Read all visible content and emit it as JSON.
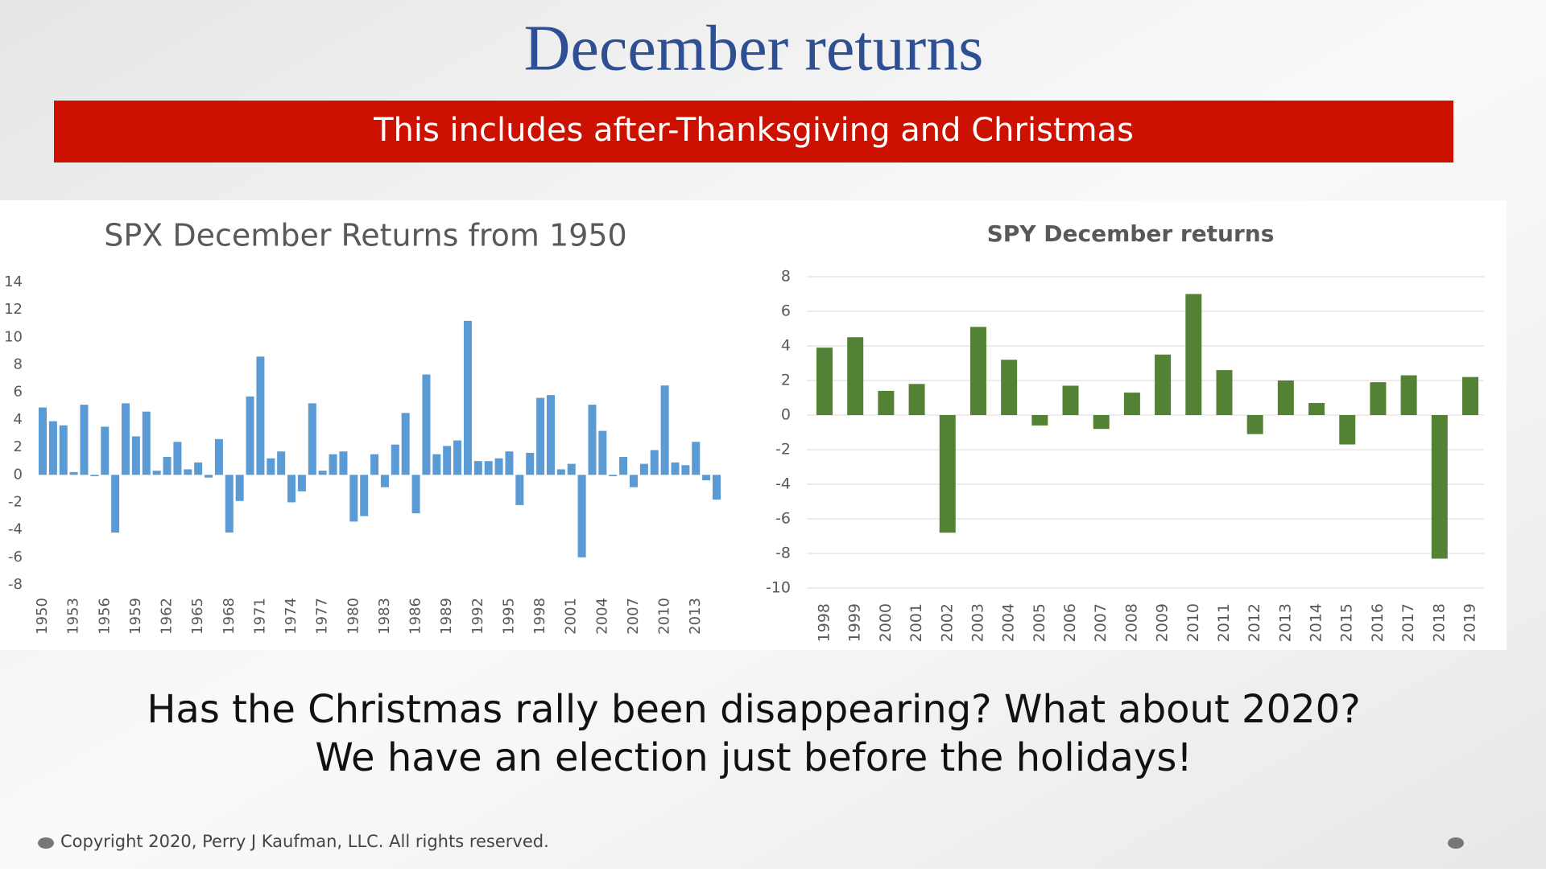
{
  "title": "December returns",
  "banner": "This includes after-Thanksgiving and Christmas",
  "chart_data": [
    {
      "type": "bar",
      "title": "SPX December Returns from 1950",
      "color": "#5b9bd5",
      "grid": false,
      "categories": [
        "1950",
        null,
        null,
        "1953",
        null,
        null,
        "1956",
        null,
        null,
        "1959",
        null,
        null,
        "1962",
        null,
        null,
        "1965",
        null,
        null,
        "1968",
        null,
        null,
        "1971",
        null,
        null,
        "1974",
        null,
        null,
        "1977",
        null,
        null,
        "1980",
        null,
        null,
        "1983",
        null,
        null,
        "1986",
        null,
        null,
        "1989",
        null,
        null,
        "1992",
        null,
        null,
        "1995",
        null,
        null,
        "1998",
        null,
        null,
        "2001",
        null,
        null,
        "2004",
        null,
        null,
        "2007",
        null,
        null,
        "2010",
        null,
        null,
        "2013",
        null,
        null
      ],
      "values": [
        4.9,
        3.9,
        3.6,
        0.2,
        5.1,
        -0.1,
        3.5,
        -4.2,
        5.2,
        2.8,
        4.6,
        0.3,
        1.3,
        2.4,
        0.4,
        0.9,
        -0.2,
        2.6,
        -4.2,
        -1.9,
        5.7,
        8.6,
        1.2,
        1.7,
        -2.0,
        -1.2,
        5.2,
        0.3,
        1.5,
        1.7,
        -3.4,
        -3.0,
        1.5,
        -0.9,
        2.2,
        4.5,
        -2.8,
        7.3,
        1.5,
        2.1,
        2.5,
        11.2,
        1.0,
        1.0,
        1.2,
        1.7,
        -2.2,
        1.6,
        5.6,
        5.8,
        0.4,
        0.8,
        -6.0,
        5.1,
        3.2,
        -0.1,
        1.3,
        -0.9,
        0.8,
        1.8,
        6.5,
        0.9,
        0.7,
        2.4,
        -0.4,
        -1.8
      ],
      "ylim": [
        -8,
        14
      ],
      "yticks": [
        -8,
        -6,
        -4,
        -2,
        0,
        2,
        4,
        6,
        8,
        10,
        12,
        14
      ]
    },
    {
      "type": "bar",
      "title": "SPY December returns",
      "color": "#548235",
      "grid": true,
      "categories": [
        "1998",
        "1999",
        "2000",
        "2001",
        "2002",
        "2003",
        "2004",
        "2005",
        "2006",
        "2007",
        "2008",
        "2009",
        "2010",
        "2011",
        "2012",
        "2013",
        "2014",
        "2015",
        "2016",
        "2017",
        "2018",
        "2019"
      ],
      "values": [
        3.9,
        4.5,
        1.4,
        1.8,
        -6.8,
        5.1,
        3.2,
        -0.6,
        1.7,
        -0.8,
        1.3,
        3.5,
        7.0,
        2.6,
        -1.1,
        2.0,
        0.7,
        -1.7,
        1.9,
        2.3,
        -8.3,
        2.2
      ],
      "ylim": [
        -10,
        8
      ],
      "yticks": [
        -10,
        -8,
        -6,
        -4,
        -2,
        0,
        2,
        4,
        6,
        8
      ]
    }
  ],
  "caption": [
    "Has the Christmas rally been disappearing? What about 2020?",
    "We have an election just before the holidays!"
  ],
  "footer": "Copyright 2020, Perry J Kaufman, LLC. All rights reserved."
}
